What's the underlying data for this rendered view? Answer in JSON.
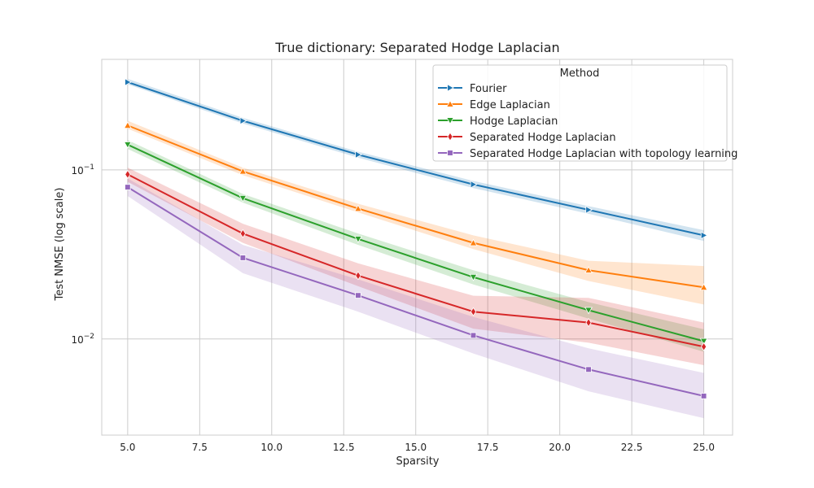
{
  "chart_data": {
    "type": "line",
    "title": "True dictionary: Separated Hodge Laplacian",
    "xlabel": "Sparsity",
    "ylabel": "Test NMSE (log scale)",
    "yscale": "log",
    "xlim": [
      4.1,
      26.0
    ],
    "ylim": [
      0.0027,
      0.45
    ],
    "x_ticks": [
      5.0,
      7.5,
      10.0,
      12.5,
      15.0,
      17.5,
      20.0,
      22.5,
      25.0
    ],
    "x_tick_labels": [
      "5.0",
      "7.5",
      "10.0",
      "12.5",
      "15.0",
      "17.5",
      "20.0",
      "22.5",
      "25.0"
    ],
    "y_ticks": [
      {
        "value": 0.1,
        "base": "10",
        "exp": "−1"
      },
      {
        "value": 0.01,
        "base": "10",
        "exp": "−2"
      }
    ],
    "grid": true,
    "legend": {
      "title": "Method",
      "placement": "top-right"
    },
    "x": [
      5,
      9,
      13,
      17,
      21,
      25
    ],
    "series": [
      {
        "name": "Fourier",
        "color": "#1f77b4",
        "marker": "triangle-right",
        "values": [
          0.33,
          0.195,
          0.123,
          0.082,
          0.058,
          0.041
        ],
        "lower": [
          0.32,
          0.188,
          0.118,
          0.078,
          0.055,
          0.038
        ],
        "upper": [
          0.345,
          0.203,
          0.128,
          0.086,
          0.061,
          0.044
        ]
      },
      {
        "name": "Edge Laplacian",
        "color": "#ff7f0e",
        "marker": "triangle-up",
        "values": [
          0.183,
          0.098,
          0.059,
          0.037,
          0.0255,
          0.0202
        ],
        "lower": [
          0.175,
          0.093,
          0.056,
          0.034,
          0.022,
          0.016
        ],
        "upper": [
          0.195,
          0.103,
          0.063,
          0.041,
          0.029,
          0.027
        ]
      },
      {
        "name": "Hodge Laplacian",
        "color": "#2ca02c",
        "marker": "triangle-down",
        "values": [
          0.141,
          0.068,
          0.039,
          0.0232,
          0.0148,
          0.0097
        ],
        "lower": [
          0.133,
          0.064,
          0.036,
          0.021,
          0.0132,
          0.0084
        ],
        "upper": [
          0.15,
          0.072,
          0.042,
          0.0255,
          0.0165,
          0.0114
        ]
      },
      {
        "name": "Separated Hodge Laplacian",
        "color": "#d62728",
        "marker": "diamond",
        "values": [
          0.094,
          0.042,
          0.0237,
          0.0145,
          0.0125,
          0.009
        ],
        "lower": [
          0.085,
          0.037,
          0.0205,
          0.0115,
          0.0095,
          0.007
        ],
        "upper": [
          0.103,
          0.048,
          0.028,
          0.018,
          0.0175,
          0.0125
        ]
      },
      {
        "name": "Separated Hodge Laplacian with topology learning",
        "color": "#9467bd",
        "marker": "square",
        "values": [
          0.079,
          0.0302,
          0.0181,
          0.0105,
          0.0066,
          0.0046
        ],
        "lower": [
          0.07,
          0.0245,
          0.0145,
          0.0082,
          0.0049,
          0.0034
        ],
        "upper": [
          0.089,
          0.036,
          0.0225,
          0.0135,
          0.0088,
          0.0063
        ]
      }
    ]
  }
}
